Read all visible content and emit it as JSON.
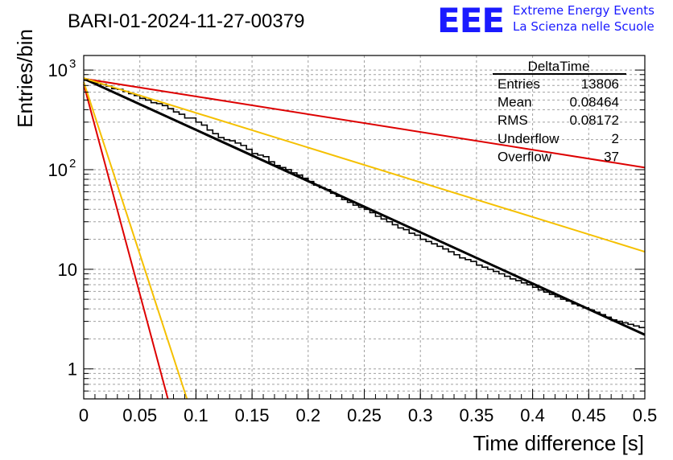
{
  "header": {
    "run_title": "BARI-01-2024-11-27-00379",
    "logo_text": "EEE",
    "logo_line1": "Extreme Energy Events",
    "logo_line2": "La Scienza nelle Scuole",
    "logo_color": "#1a1aff"
  },
  "stats_box": {
    "title": "DeltaTime",
    "rows": [
      {
        "label": "Entries",
        "value": "13806"
      },
      {
        "label": "Mean",
        "value": "0.08464"
      },
      {
        "label": "RMS",
        "value": "0.08172"
      },
      {
        "label": "Underflow",
        "value": "2"
      },
      {
        "label": "Overflow",
        "value": "37"
      }
    ]
  },
  "chart_data": {
    "type": "line",
    "xlabel": "Time difference [s]",
    "ylabel": "Entries/bin",
    "xlim": [
      0,
      0.5
    ],
    "ylim": [
      0.5,
      1400
    ],
    "y_scale": "log",
    "x_ticks": [
      "0",
      "0.05",
      "0.1",
      "0.15",
      "0.2",
      "0.25",
      "0.3",
      "0.35",
      "0.4",
      "0.45",
      "0.5"
    ],
    "y_ticks": [
      {
        "value": 1,
        "label": "1"
      },
      {
        "value": 10,
        "label": "10"
      },
      {
        "value": 100,
        "label": "10",
        "exp": "2"
      },
      {
        "value": 1000,
        "label": "10",
        "exp": "3"
      }
    ],
    "grid": true,
    "series": [
      {
        "kind": "histogram",
        "color": "#000000",
        "bin_width": 0.005,
        "values": [
          790,
          770,
          740,
          720,
          690,
          650,
          640,
          610,
          580,
          555,
          520,
          500,
          470,
          460,
          440,
          410,
          380,
          360,
          330,
          330,
          300,
          280,
          250,
          230,
          210,
          200,
          195,
          185,
          175,
          160,
          145,
          140,
          135,
          120,
          110,
          105,
          100,
          93,
          88,
          82,
          76,
          70,
          66,
          63,
          58,
          54,
          50,
          47,
          44,
          42,
          40,
          37,
          34,
          32,
          30,
          28,
          26,
          25,
          23,
          22,
          20,
          19,
          18,
          17,
          16,
          15,
          14,
          13,
          12.5,
          12,
          11,
          10.5,
          10,
          9.5,
          9,
          8.5,
          8,
          7.7,
          7.3,
          7,
          6.6,
          6.2,
          5.9,
          5.6,
          5.3,
          5,
          4.8,
          4.5,
          4.3,
          4.1,
          3.9,
          3.7,
          3.5,
          3.3,
          3.1,
          3,
          2.9,
          2.8,
          2.7,
          2.6
        ]
      },
      {
        "kind": "fit",
        "color": "#000000",
        "x": [
          0,
          0.5
        ],
        "y": [
          820,
          2.2
        ]
      },
      {
        "kind": "reference",
        "color": "#dd0000",
        "x": [
          0,
          0.5
        ],
        "y": [
          820,
          105
        ]
      },
      {
        "kind": "reference",
        "color": "#f5c000",
        "x": [
          0,
          0.5
        ],
        "y": [
          830,
          15
        ]
      },
      {
        "kind": "reference",
        "color": "#dd0000",
        "x": [
          0,
          0.075
        ],
        "y": [
          720,
          0.5
        ]
      },
      {
        "kind": "reference",
        "color": "#f5c000",
        "x": [
          0,
          0.092
        ],
        "y": [
          760,
          0.5
        ]
      }
    ]
  }
}
